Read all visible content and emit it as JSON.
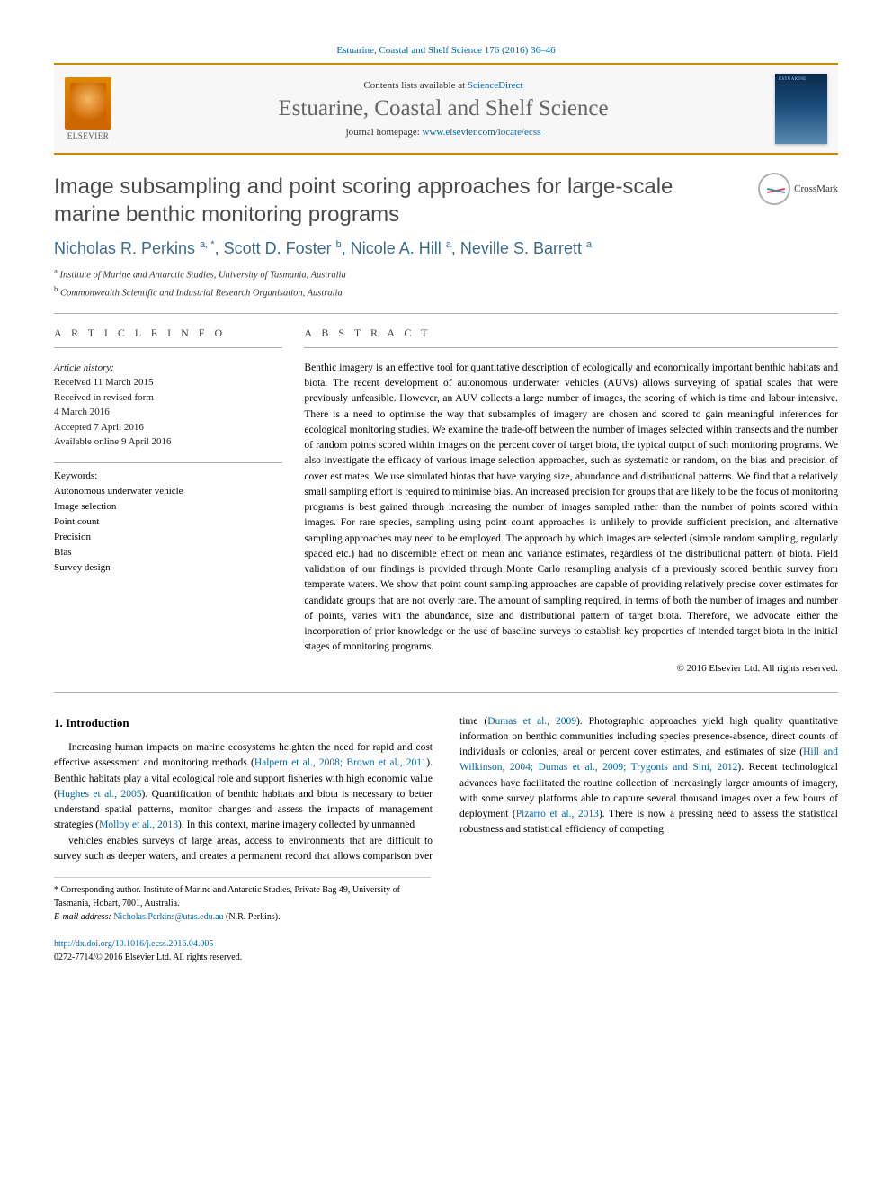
{
  "citation": "Estuarine, Coastal and Shelf Science 176 (2016) 36–46",
  "header": {
    "contents_prefix": "Contents lists available at ",
    "contents_link": "ScienceDirect",
    "journal": "Estuarine, Coastal and Shelf Science",
    "homepage_prefix": "journal homepage: ",
    "homepage_link": "www.elsevier.com/locate/ecss",
    "publisher_label": "ELSEVIER"
  },
  "crossmark_label": "CrossMark",
  "title": "Image subsampling and point scoring approaches for large-scale marine benthic monitoring programs",
  "authors_html": "Nicholas R. Perkins <sup>a, *</sup>, Scott D. Foster <sup>b</sup>, Nicole A. Hill <sup>a</sup>, Neville S. Barrett <sup>a</sup>",
  "affiliations": [
    "a Institute of Marine and Antarctic Studies, University of Tasmania, Australia",
    "b Commonwealth Scientific and Industrial Research Organisation, Australia"
  ],
  "article_info_label": "A R T I C L E  I N F O",
  "abstract_label": "A B S T R A C T",
  "history_label": "Article history:",
  "history": [
    "Received 11 March 2015",
    "Received in revised form",
    "4 March 2016",
    "Accepted 7 April 2016",
    "Available online 9 April 2016"
  ],
  "keywords_label": "Keywords:",
  "keywords": [
    "Autonomous underwater vehicle",
    "Image selection",
    "Point count",
    "Precision",
    "Bias",
    "Survey design"
  ],
  "abstract": "Benthic imagery is an effective tool for quantitative description of ecologically and economically important benthic habitats and biota. The recent development of autonomous underwater vehicles (AUVs) allows surveying of spatial scales that were previously unfeasible. However, an AUV collects a large number of images, the scoring of which is time and labour intensive. There is a need to optimise the way that subsamples of imagery are chosen and scored to gain meaningful inferences for ecological monitoring studies. We examine the trade-off between the number of images selected within transects and the number of random points scored within images on the percent cover of target biota, the typical output of such monitoring programs. We also investigate the efficacy of various image selection approaches, such as systematic or random, on the bias and precision of cover estimates. We use simulated biotas that have varying size, abundance and distributional patterns. We find that a relatively small sampling effort is required to minimise bias. An increased precision for groups that are likely to be the focus of monitoring programs is best gained through increasing the number of images sampled rather than the number of points scored within images. For rare species, sampling using point count approaches is unlikely to provide sufficient precision, and alternative sampling approaches may need to be employed. The approach by which images are selected (simple random sampling, regularly spaced etc.) had no discernible effect on mean and variance estimates, regardless of the distributional pattern of biota. Field validation of our findings is provided through Monte Carlo resampling analysis of a previously scored benthic survey from temperate waters. We show that point count sampling approaches are capable of providing relatively precise cover estimates for candidate groups that are not overly rare. The amount of sampling required, in terms of both the number of images and number of points, varies with the abundance, size and distributional pattern of target biota. Therefore, we advocate either the incorporation of prior knowledge or the use of baseline surveys to establish key properties of intended target biota in the initial stages of monitoring programs.",
  "copyright": "© 2016 Elsevier Ltd. All rights reserved.",
  "intro_heading": "1.  Introduction",
  "intro_paragraphs": [
    "Increasing human impacts on marine ecosystems heighten the need for rapid and cost effective assessment and monitoring methods (Halpern et al., 2008; Brown et al., 2011). Benthic habitats play a vital ecological role and support fisheries with high economic value (Hughes et al., 2005). Quantification of benthic habitats and biota is necessary to better understand spatial patterns, monitor changes and assess the impacts of management strategies (Molloy et al., 2013). In this context, marine imagery collected by unmanned",
    "vehicles enables surveys of large areas, access to environments that are difficult to survey such as deeper waters, and creates a permanent record that allows comparison over time (Dumas et al., 2009). Photographic approaches yield high quality quantitative information on benthic communities including species presence-absence, direct counts of individuals or colonies, areal or percent cover estimates, and estimates of size (Hill and Wilkinson, 2004; Dumas et al., 2009; Trygonis and Sini, 2012). Recent technological advances have facilitated the routine collection of increasingly larger amounts of imagery, with some survey platforms able to capture several thousand images over a few hours of deployment (Pizarro et al., 2013). There is now a pressing need to assess the statistical robustness and statistical efficiency of competing"
  ],
  "footnote_corresponding": "* Corresponding author. Institute of Marine and Antarctic Studies, Private Bag 49, University of Tasmania, Hobart, 7001, Australia.",
  "footnote_email_label": "E-mail address: ",
  "footnote_email": "Nicholas.Perkins@utas.edu.au",
  "footnote_email_suffix": " (N.R. Perkins).",
  "doi": "http://dx.doi.org/10.1016/j.ecss.2016.04.005",
  "issn_line": "0272-7714/© 2016 Elsevier Ltd. All rights reserved.",
  "colors": {
    "accent_orange": "#cc8800",
    "link_blue": "#0066aa",
    "title_gray": "#4a4a4a",
    "author_blue": "#3f6a8a"
  }
}
